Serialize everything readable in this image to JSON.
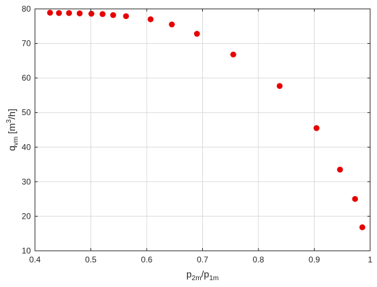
{
  "chart_data": {
    "type": "scatter",
    "title": "",
    "xlabel": {
      "main": "p",
      "sub1": "2m",
      "sep": "/p",
      "sub2": "1m"
    },
    "ylabel": {
      "main": "q",
      "sub": "vm",
      "unit_open": " [m",
      "sup": "3",
      "unit_close": "/h]"
    },
    "xlim": [
      0.4,
      1.0
    ],
    "ylim": [
      10,
      80
    ],
    "xticks": [
      0.4,
      0.5,
      0.6,
      0.7,
      0.8,
      0.9,
      1.0
    ],
    "xtick_labels": [
      "0.4",
      "0.5",
      "0.6",
      "0.7",
      "0.8",
      "0.9",
      "1"
    ],
    "yticks": [
      10,
      20,
      30,
      40,
      50,
      60,
      70,
      80
    ],
    "ytick_labels": [
      "10",
      "20",
      "30",
      "40",
      "50",
      "60",
      "70",
      "80"
    ],
    "grid": true,
    "marker_color": "#e60000",
    "series": [
      {
        "x": [
          0.427,
          0.443,
          0.461,
          0.48,
          0.501,
          0.521,
          0.54,
          0.563,
          0.607,
          0.645,
          0.69,
          0.755,
          0.838,
          0.904,
          0.946,
          0.973,
          0.986
        ],
        "y": [
          78.9,
          78.8,
          78.8,
          78.7,
          78.6,
          78.5,
          78.2,
          77.9,
          77.0,
          75.5,
          72.8,
          66.8,
          57.7,
          45.5,
          33.5,
          25.0,
          16.8
        ]
      }
    ]
  }
}
